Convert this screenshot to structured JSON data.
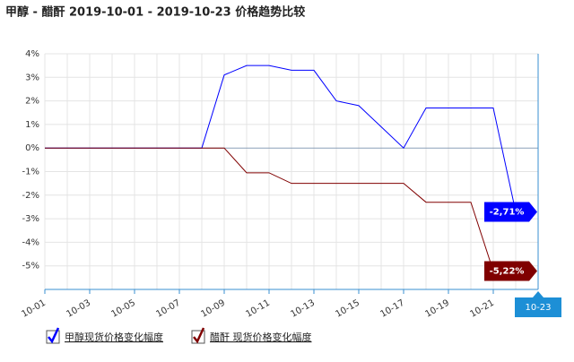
{
  "chart_data": {
    "type": "line",
    "title": "甲醇 - 醋酐 2019-10-01 - 2019-10-23 价格趋势比较",
    "categories": [
      "10-01",
      null,
      "10-03",
      null,
      "10-05",
      null,
      "10-07",
      null,
      "10-09",
      null,
      "10-11",
      null,
      "10-13",
      null,
      "10-15",
      null,
      "10-17",
      null,
      "10-19",
      null,
      "10-21",
      null,
      "10-23"
    ],
    "series": [
      {
        "name": "甲醇现货价格变化幅度",
        "color": "#0000ff",
        "values": [
          0,
          0,
          0,
          0,
          0,
          0,
          0,
          0,
          3.1,
          3.5,
          3.5,
          3.3,
          3.3,
          2.0,
          1.8,
          0.9,
          0,
          1.7,
          1.7,
          1.7,
          1.7,
          -2.71,
          null
        ],
        "value_labels": [
          null,
          null,
          null,
          null,
          null,
          null,
          null,
          null,
          null,
          null,
          null,
          null,
          null,
          null,
          null,
          null,
          null,
          null,
          null,
          null,
          null,
          "-2,71%",
          null
        ]
      },
      {
        "name": "醋酐 现货价格变化幅度",
        "color": "#800000",
        "values": [
          0,
          0,
          0,
          0,
          0,
          0,
          0,
          0,
          0,
          -1.05,
          -1.05,
          -1.5,
          -1.5,
          -1.5,
          -1.5,
          -1.5,
          -1.5,
          -2.3,
          -2.3,
          -2.3,
          -5.22,
          null,
          null
        ],
        "value_labels": [
          null,
          null,
          null,
          null,
          null,
          null,
          null,
          null,
          null,
          null,
          null,
          null,
          null,
          null,
          null,
          null,
          null,
          null,
          null,
          null,
          "-5,22%",
          null,
          null
        ]
      }
    ],
    "ylim": [
      -6,
      4
    ],
    "yticks": [
      {
        "value": 4,
        "label": "4%"
      },
      {
        "value": 3,
        "label": "3%"
      },
      {
        "value": 2,
        "label": "2%"
      },
      {
        "value": 1,
        "label": "1%"
      },
      {
        "value": 0,
        "label": "0%"
      },
      {
        "value": -1,
        "label": "-1%"
      },
      {
        "value": -2,
        "label": "-2%"
      },
      {
        "value": -3,
        "label": "-3%"
      },
      {
        "value": -4,
        "label": "-4%"
      },
      {
        "value": -5,
        "label": "-5%"
      }
    ],
    "grid": true
  }
}
